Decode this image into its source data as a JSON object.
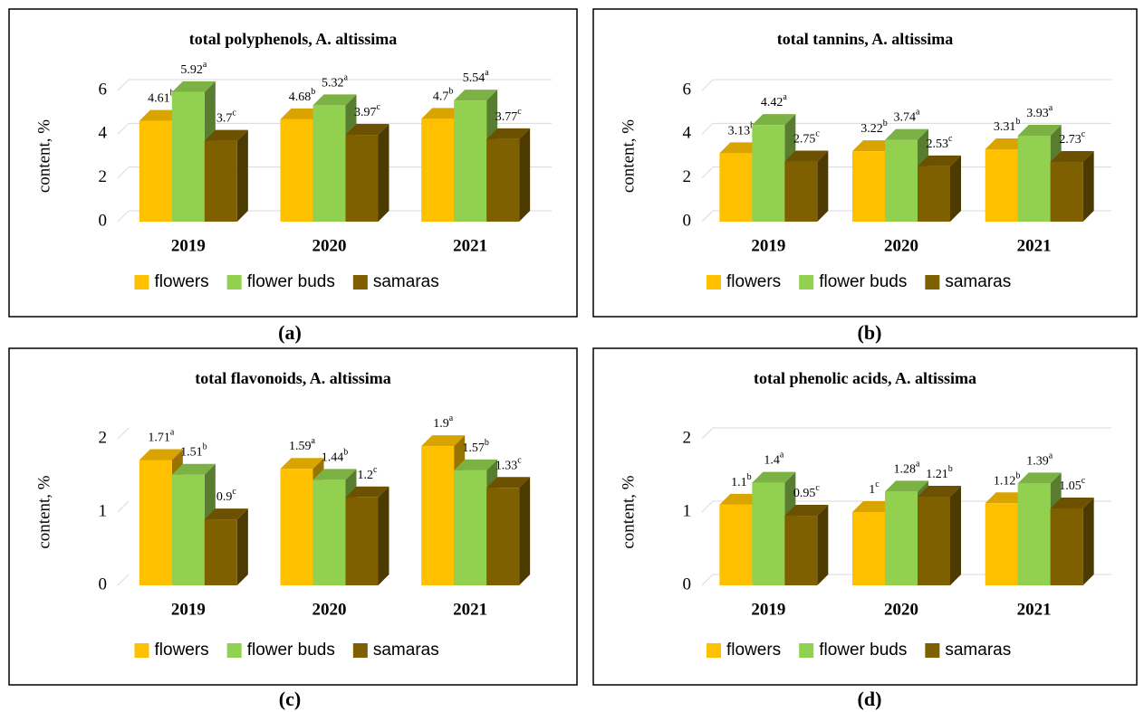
{
  "chart_data": [
    {
      "type": "bar",
      "panel_label": "(a)",
      "title": "total polyphenols, A. altissima",
      "y_label": "content, %",
      "categories": [
        "2019",
        "2020",
        "2021"
      ],
      "ylim": [
        0,
        6
      ],
      "yticks": [
        0,
        2,
        4,
        6
      ],
      "grid": true,
      "series": [
        {
          "name": "flowers",
          "color": "#ffc000",
          "values": [
            4.61,
            4.68,
            4.7
          ],
          "letters": [
            "b",
            "b",
            "b"
          ]
        },
        {
          "name": "flower buds",
          "color": "#92d050",
          "values": [
            5.92,
            5.32,
            5.54
          ],
          "letters": [
            "a",
            "a",
            "a"
          ]
        },
        {
          "name": "samaras",
          "color": "#7f6000",
          "values": [
            3.7,
            3.97,
            3.77
          ],
          "letters": [
            "c",
            "c",
            "c"
          ]
        }
      ]
    },
    {
      "type": "bar",
      "panel_label": "(b)",
      "title": "total tannins, A. altissima",
      "y_label": "content, %",
      "categories": [
        "2019",
        "2020",
        "2021"
      ],
      "ylim": [
        0,
        6
      ],
      "yticks": [
        0,
        2,
        4,
        6
      ],
      "grid": true,
      "series": [
        {
          "name": "flowers",
          "color": "#ffc000",
          "values": [
            3.13,
            3.22,
            3.31
          ],
          "letters": [
            "b",
            "b",
            "b"
          ]
        },
        {
          "name": "flower buds",
          "color": "#92d050",
          "values": [
            4.42,
            3.74,
            3.93
          ],
          "letters": [
            "a",
            "a",
            "a"
          ]
        },
        {
          "name": "samaras",
          "color": "#7f6000",
          "values": [
            2.75,
            2.53,
            2.73
          ],
          "letters": [
            "c",
            "c",
            "c"
          ]
        }
      ]
    },
    {
      "type": "bar",
      "panel_label": "(c)",
      "title": "total flavonoids, A. altissima",
      "y_label": "content, %",
      "categories": [
        "2019",
        "2020",
        "2021"
      ],
      "ylim": [
        0,
        2
      ],
      "yticks": [
        0,
        1,
        2
      ],
      "grid": false,
      "series": [
        {
          "name": "flowers",
          "color": "#ffc000",
          "values": [
            1.71,
            1.59,
            1.9
          ],
          "letters": [
            "a",
            "a",
            "a"
          ]
        },
        {
          "name": "flower buds",
          "color": "#92d050",
          "values": [
            1.51,
            1.44,
            1.57
          ],
          "letters": [
            "b",
            "b",
            "b"
          ]
        },
        {
          "name": "samaras",
          "color": "#7f6000",
          "values": [
            0.9,
            1.2,
            1.33
          ],
          "letters": [
            "c",
            "c",
            "c"
          ]
        }
      ]
    },
    {
      "type": "bar",
      "panel_label": "(d)",
      "title": "total phenolic acids, A. altissima",
      "y_label": "content, %",
      "categories": [
        "2019",
        "2020",
        "2021"
      ],
      "ylim": [
        0,
        2
      ],
      "yticks": [
        0,
        1,
        2
      ],
      "grid": true,
      "series": [
        {
          "name": "flowers",
          "color": "#ffc000",
          "values": [
            1.1,
            1,
            1.12
          ],
          "letters": [
            "b",
            "c",
            "b"
          ]
        },
        {
          "name": "flower buds",
          "color": "#92d050",
          "values": [
            1.4,
            1.28,
            1.39
          ],
          "letters": [
            "a",
            "a",
            "a"
          ]
        },
        {
          "name": "samaras",
          "color": "#7f6000",
          "values": [
            0.95,
            1.21,
            1.05
          ],
          "letters": [
            "c",
            "b",
            "c"
          ]
        }
      ]
    }
  ]
}
